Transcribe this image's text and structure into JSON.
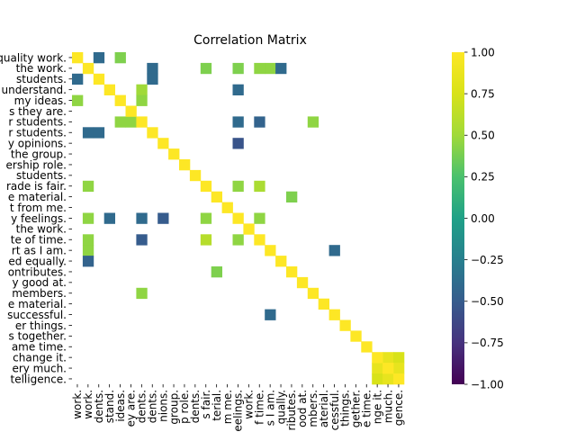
{
  "chart_data": {
    "type": "heatmap",
    "title": "Correlation Matrix",
    "labels": [
      "quality work.",
      "the work.",
      "students.",
      "understand.",
      "my ideas.",
      "s they are.",
      "r students.",
      "r students.",
      "y opinions.",
      "the group.",
      "ership role.",
      "students.",
      "rade is fair.",
      "e material.",
      "t from me.",
      "y feelings.",
      "the work.",
      "te of time.",
      "rt as I am.",
      "ed equally.",
      "ontributes.",
      "y good at.",
      "members.",
      "e material.",
      "successful.",
      "er things.",
      "s together.",
      "ame time.",
      "change it.",
      "ery much.",
      "telligence."
    ],
    "xlabels": [
      "work.",
      "work.",
      "dents.",
      "stand.",
      "ideas.",
      "ey are.",
      "dents.",
      "dents.",
      "nions.",
      "group.",
      "p role.",
      "dents.",
      "s fair.",
      "terial.",
      "m me.",
      "eelings.",
      "work.",
      "f time.",
      "s I am.",
      "qually.",
      "ributes.",
      "ood at.",
      "mbers.",
      "aterial.",
      "cessful.",
      "things.",
      "gether.",
      "e time.",
      "nge it.",
      "much.",
      "gence."
    ],
    "cells": [
      [
        0,
        2,
        -0.4
      ],
      [
        0,
        4,
        0.4
      ],
      [
        1,
        7,
        -0.4
      ],
      [
        1,
        12,
        0.4
      ],
      [
        1,
        15,
        0.4
      ],
      [
        1,
        17,
        0.45
      ],
      [
        1,
        18,
        0.45
      ],
      [
        1,
        19,
        -0.4
      ],
      [
        2,
        0,
        -0.4
      ],
      [
        2,
        7,
        -0.4
      ],
      [
        3,
        6,
        0.5
      ],
      [
        3,
        15,
        -0.4
      ],
      [
        4,
        0,
        0.45
      ],
      [
        4,
        6,
        0.45
      ],
      [
        6,
        4,
        0.45
      ],
      [
        6,
        5,
        0.45
      ],
      [
        6,
        15,
        -0.4
      ],
      [
        6,
        17,
        -0.45
      ],
      [
        6,
        22,
        0.45
      ],
      [
        7,
        1,
        -0.4
      ],
      [
        7,
        2,
        -0.4
      ],
      [
        8,
        15,
        -0.55
      ],
      [
        12,
        1,
        0.45
      ],
      [
        12,
        15,
        0.45
      ],
      [
        12,
        17,
        0.55
      ],
      [
        13,
        20,
        0.4
      ],
      [
        15,
        1,
        0.45
      ],
      [
        15,
        3,
        -0.4
      ],
      [
        15,
        6,
        -0.4
      ],
      [
        15,
        8,
        -0.5
      ],
      [
        15,
        12,
        0.45
      ],
      [
        15,
        17,
        0.45
      ],
      [
        17,
        1,
        0.45
      ],
      [
        17,
        6,
        -0.5
      ],
      [
        17,
        12,
        0.6
      ],
      [
        17,
        15,
        0.45
      ],
      [
        18,
        1,
        0.45
      ],
      [
        18,
        24,
        -0.4
      ],
      [
        19,
        1,
        -0.45
      ],
      [
        20,
        13,
        0.4
      ],
      [
        22,
        6,
        0.45
      ],
      [
        24,
        18,
        -0.4
      ],
      [
        28,
        29,
        0.85
      ],
      [
        28,
        30,
        0.75
      ],
      [
        29,
        28,
        0.85
      ],
      [
        29,
        30,
        0.85
      ],
      [
        30,
        28,
        0.75
      ],
      [
        30,
        29,
        0.85
      ]
    ],
    "diagonal_value": 1.0,
    "vmin": -1.0,
    "vmax": 1.0,
    "colormap": "viridis",
    "colorbar_ticks": [
      "1.00",
      "0.75",
      "0.50",
      "0.25",
      "0.00",
      "−0.25",
      "−0.50",
      "−0.75",
      "−1.00"
    ],
    "colorbar_tick_values": [
      1.0,
      0.75,
      0.5,
      0.25,
      0.0,
      -0.25,
      -0.5,
      -0.75,
      -1.0
    ]
  }
}
